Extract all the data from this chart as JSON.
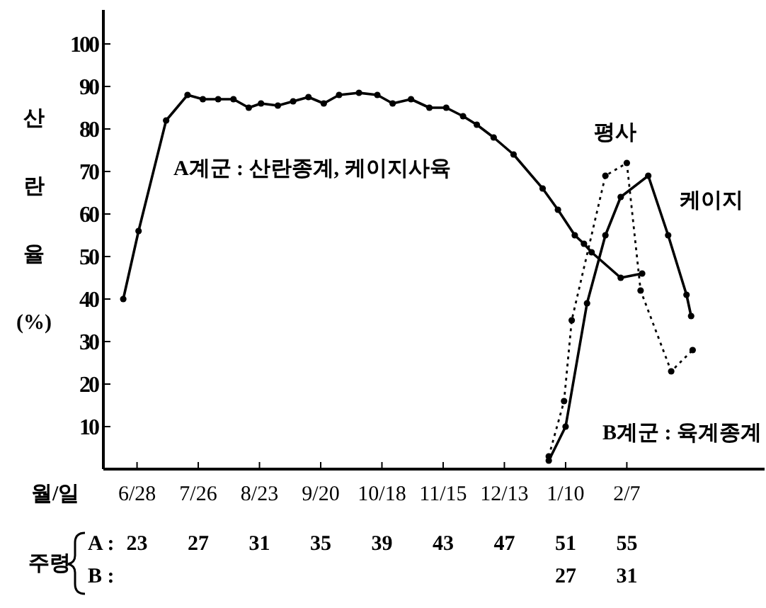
{
  "chart_data": {
    "type": "line",
    "ylabel": "산란율 (%)",
    "xlabel": "A :",
    "xlim": [
      20.8,
      64
    ],
    "xticks": [
      23,
      27,
      31,
      35,
      39,
      43,
      47,
      51,
      55
    ],
    "ylim": [
      0,
      108
    ],
    "yticks": [
      10,
      20,
      30,
      40,
      50,
      60,
      70,
      80,
      90,
      100
    ],
    "grid": false,
    "marker": "circle",
    "annotations": [
      "주령",
      "B :",
      "27",
      "31",
      "B계군 : 육계종계",
      "월/일",
      "6/28",
      "7/26",
      "8/23",
      "9/20",
      "10/18",
      "11/15",
      "12/13",
      "1/10",
      "2/7"
    ],
    "series": [
      {
        "name": "A계군 : 산란종계, 케이지사육",
        "color": "#000000",
        "line_style": "solid",
        "x": [
          22.1,
          23.1,
          24.9,
          26.3,
          27.3,
          28.3,
          29.3,
          30.3,
          31.1,
          32.2,
          33.2,
          34.2,
          35.2,
          36.2,
          37.5,
          38.7,
          39.7,
          40.9,
          42.1,
          43.2,
          44.3,
          45.2,
          46.3,
          47.6,
          49.5,
          50.5,
          51.6,
          52.2,
          52.7,
          54.6,
          56.0
        ],
        "values": [
          40,
          56,
          82,
          88,
          87,
          87,
          87,
          85,
          86,
          85.5,
          86.5,
          87.5,
          86,
          88,
          88.5,
          88,
          86,
          87,
          85,
          85,
          83,
          81,
          78,
          74,
          66,
          61,
          55,
          53,
          51,
          45,
          46
        ]
      },
      {
        "name": "케이지",
        "color": "#000000",
        "line_style": "solid",
        "x": [
          49.9,
          51.0,
          52.4,
          53.6,
          54.6,
          56.4,
          57.7,
          58.9,
          59.2
        ],
        "values": [
          2,
          10,
          39,
          55,
          64,
          69,
          55,
          41,
          36
        ]
      },
      {
        "name": "평사",
        "color": "#000000",
        "line_style": "dotted",
        "x": [
          49.9,
          50.9,
          51.4,
          53.6,
          55.0,
          55.9,
          57.9,
          59.3
        ],
        "values": [
          3,
          16,
          35,
          69,
          72,
          42,
          23,
          28
        ]
      }
    ]
  }
}
